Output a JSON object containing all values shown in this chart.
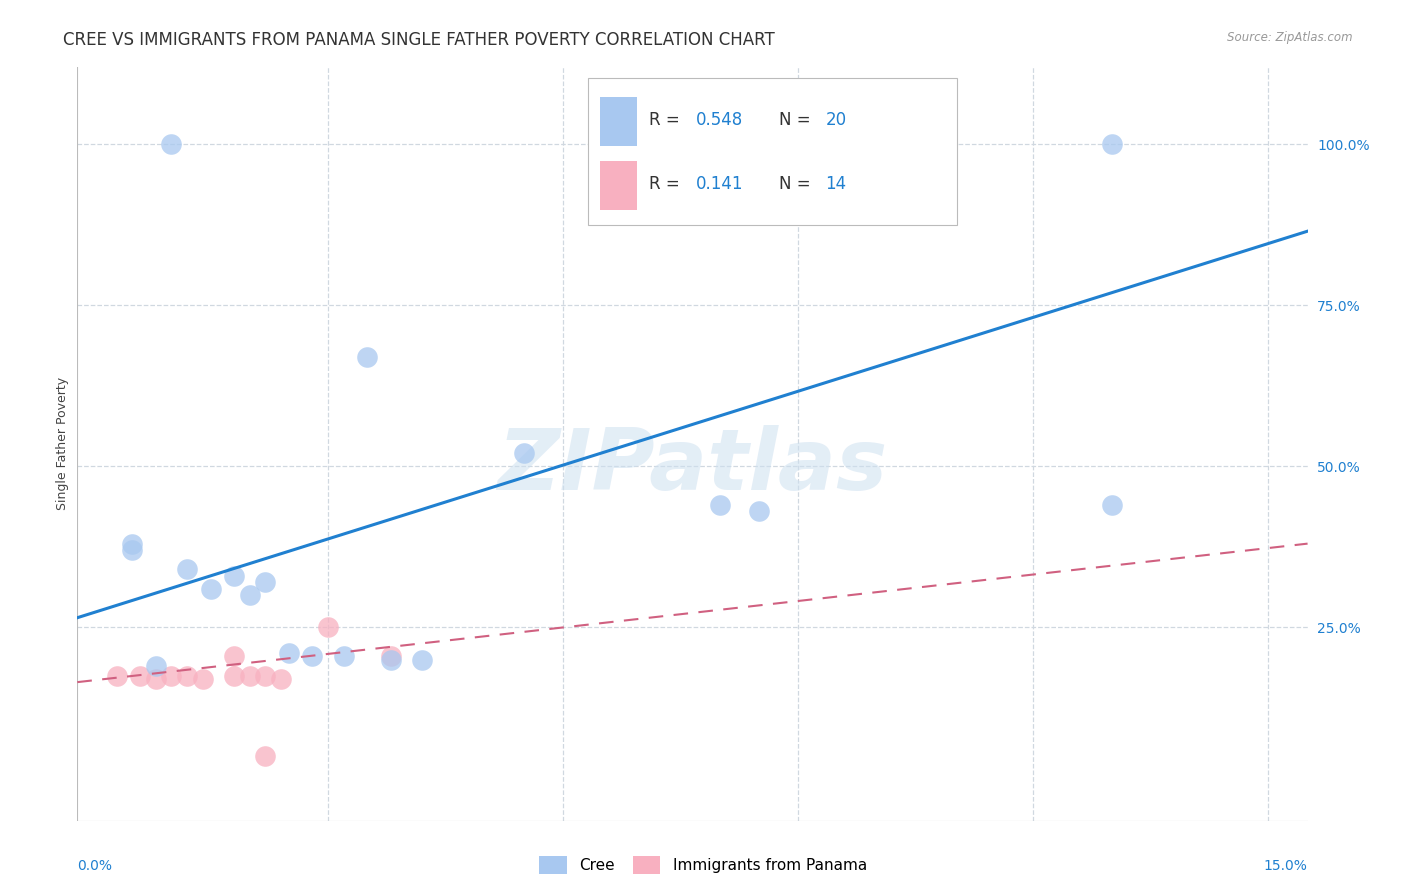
{
  "title": "CREE VS IMMIGRANTS FROM PANAMA SINGLE FATHER POVERTY CORRELATION CHART",
  "source": "Source: ZipAtlas.com",
  "ylabel": "Single Father Poverty",
  "ytick_values": [
    0.25,
    0.5,
    0.75,
    1.0
  ],
  "xtick_values": [
    0.0,
    0.03,
    0.06,
    0.09,
    0.12,
    0.15
  ],
  "xlim": [
    -0.002,
    0.155
  ],
  "ylim": [
    -0.05,
    1.12
  ],
  "legend1_R": "0.548",
  "legend1_N": "20",
  "legend2_R": "0.141",
  "legend2_N": "14",
  "cree_color": "#a8c8f0",
  "panama_color": "#f8b0c0",
  "cree_line_color": "#2080d0",
  "panama_line_color": "#d06080",
  "background_color": "#ffffff",
  "grid_color": "#d0d8e0",
  "cree_x": [
    0.01,
    0.005,
    0.035,
    0.055,
    0.08,
    0.085,
    0.005,
    0.012,
    0.018,
    0.022,
    0.015,
    0.02,
    0.025,
    0.028,
    0.032,
    0.038,
    0.042,
    0.008,
    0.13,
    0.13
  ],
  "cree_y": [
    1.0,
    0.38,
    0.67,
    0.52,
    0.44,
    0.43,
    0.37,
    0.34,
    0.33,
    0.32,
    0.31,
    0.3,
    0.21,
    0.205,
    0.205,
    0.2,
    0.2,
    0.19,
    0.44,
    1.0
  ],
  "pan_x": [
    0.003,
    0.006,
    0.008,
    0.01,
    0.012,
    0.014,
    0.018,
    0.02,
    0.022,
    0.024,
    0.03,
    0.038,
    0.018,
    0.022
  ],
  "pan_y": [
    0.175,
    0.175,
    0.17,
    0.175,
    0.175,
    0.17,
    0.175,
    0.175,
    0.175,
    0.17,
    0.25,
    0.205,
    0.205,
    0.05
  ],
  "cree_line_x": [
    -0.002,
    0.155
  ],
  "cree_line_y": [
    0.265,
    0.865
  ],
  "panama_line_x": [
    -0.002,
    0.155
  ],
  "panama_line_y": [
    0.165,
    0.38
  ],
  "watermark": "ZIPatlas",
  "title_fontsize": 12,
  "axis_label_fontsize": 9,
  "tick_fontsize": 10
}
